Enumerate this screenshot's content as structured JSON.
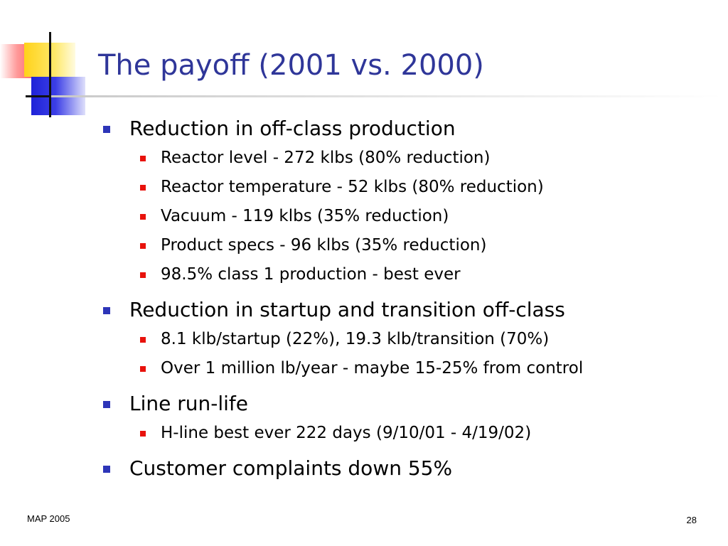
{
  "slide": {
    "title": "The payoff (2001 vs. 2000)",
    "accent_colors": {
      "title": "#2f3699",
      "level1_bullet": "#2d35b8",
      "level2_bullet": "#e8120c"
    },
    "bullets": [
      {
        "text": "Reduction in off-class production",
        "children": [
          "Reactor level - 272 klbs (80% reduction)",
          "Reactor temperature - 52 klbs (80% reduction)",
          "Vacuum - 119 klbs (35% reduction)",
          "Product specs - 96 klbs (35% reduction)",
          "98.5% class 1 production - best ever"
        ]
      },
      {
        "text": "Reduction in startup and transition off-class",
        "children": [
          "8.1 klb/startup (22%), 19.3 klb/transition (70%)",
          "Over 1 million lb/year - maybe 15-25% from control"
        ]
      },
      {
        "text": "Line run-life",
        "children": [
          "H-line best ever 222 days (9/10/01 - 4/19/02)"
        ]
      },
      {
        "text": "Customer complaints down 55%",
        "children": []
      }
    ]
  },
  "footer": {
    "left": "MAP 2005",
    "page_number": "28"
  }
}
